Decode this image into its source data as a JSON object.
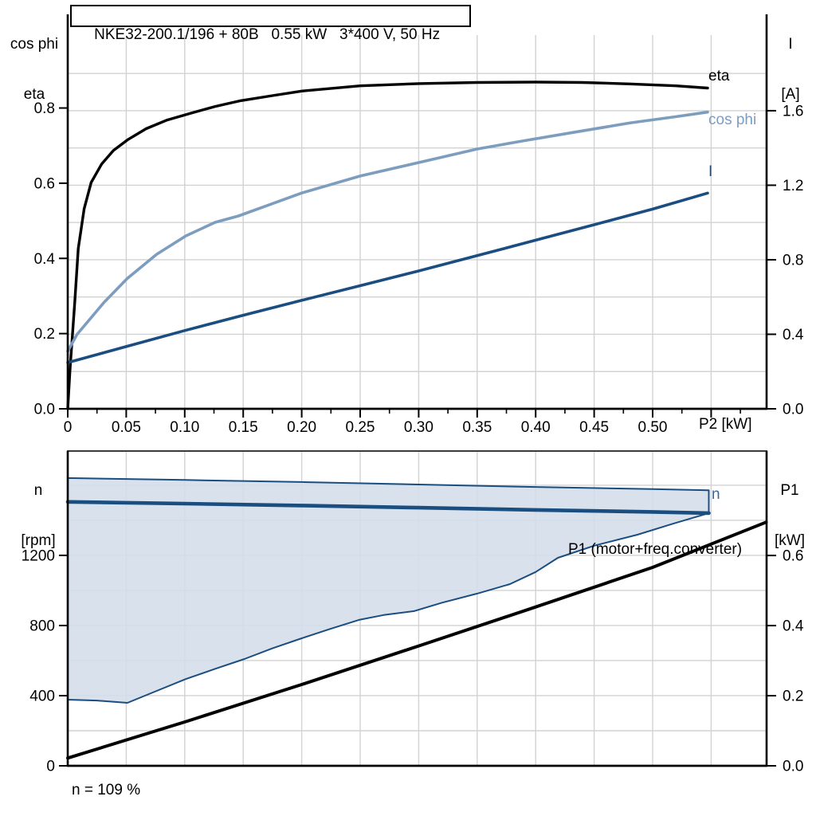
{
  "title": "NKE32-200.1/196 + 80B   0.55 kW   3*400 V, 50 Hz",
  "colors": {
    "eta_curve": "#000000",
    "cos_phi_curve": "#7d9dbf",
    "current_curve": "#1a4d80",
    "speed_curve": "#1a4d80",
    "p1_curve": "#000000",
    "region_fill": "#d3dde9",
    "grid": "#d2d2d2"
  },
  "chart_data": [
    {
      "type": "line",
      "x": {
        "label": "P2 [kW]",
        "min": 0,
        "max": 0.5974,
        "ticks": [
          {
            "v": 0,
            "t": "0"
          },
          {
            "v": 0.05,
            "t": "0.05"
          },
          {
            "v": 0.1,
            "t": "0.10"
          },
          {
            "v": 0.15,
            "t": "0.15"
          },
          {
            "v": 0.2,
            "t": "0.20"
          },
          {
            "v": 0.25,
            "t": "0.25"
          },
          {
            "v": 0.3,
            "t": "0.30"
          },
          {
            "v": 0.35,
            "t": "0.35"
          },
          {
            "v": 0.4,
            "t": "0.40"
          },
          {
            "v": 0.45,
            "t": "0.45"
          },
          {
            "v": 0.5,
            "t": "0.50"
          },
          {
            "v": 0.55,
            "t": ""
          }
        ],
        "minor_tick_step": 0.025
      },
      "y_left": {
        "label_lines": [
          "cos phi",
          "eta"
        ],
        "min": 0,
        "max": 0.994,
        "ticks": [
          {
            "v": 0,
            "t": "0.0"
          },
          {
            "v": 0.2,
            "t": "0.2"
          },
          {
            "v": 0.4,
            "t": "0.4"
          },
          {
            "v": 0.6,
            "t": "0.6"
          },
          {
            "v": 0.8,
            "t": "0.8"
          }
        ]
      },
      "y_right": {
        "label_lines": [
          "I",
          "[A]"
        ],
        "min": 0,
        "max": 2.006,
        "ticks": [
          {
            "v": 0,
            "t": "0.0"
          },
          {
            "v": 0.4,
            "t": "0.4"
          },
          {
            "v": 0.8,
            "t": "0.8"
          },
          {
            "v": 1.2,
            "t": "1.2"
          },
          {
            "v": 1.6,
            "t": "1.6"
          }
        ]
      },
      "grid_h_axis": "right",
      "grid_h": [
        0.2,
        0.4,
        0.6,
        0.8,
        1.0,
        1.2,
        1.4,
        1.6,
        1.8,
        2.0
      ],
      "series": [
        {
          "name": "eta",
          "axis": "left",
          "color": "#000000",
          "width": 3.4,
          "points": [
            [
              0,
              0
            ],
            [
              0.002,
              0.106
            ],
            [
              0.006,
              0.283
            ],
            [
              0.009,
              0.426
            ],
            [
              0.014,
              0.532
            ],
            [
              0.02,
              0.602
            ],
            [
              0.029,
              0.651
            ],
            [
              0.039,
              0.687
            ],
            [
              0.051,
              0.715
            ],
            [
              0.067,
              0.745
            ],
            [
              0.085,
              0.768
            ],
            [
              0.106,
              0.787
            ],
            [
              0.126,
              0.804
            ],
            [
              0.147,
              0.819
            ],
            [
              0.175,
              0.833
            ],
            [
              0.2,
              0.845
            ],
            [
              0.25,
              0.859
            ],
            [
              0.3,
              0.865
            ],
            [
              0.35,
              0.868
            ],
            [
              0.4,
              0.869
            ],
            [
              0.44,
              0.868
            ],
            [
              0.48,
              0.864
            ],
            [
              0.52,
              0.859
            ],
            [
              0.547,
              0.853
            ]
          ]
        },
        {
          "name": "cos phi",
          "axis": "left",
          "color": "#7d9dbf",
          "width": 3.6,
          "points": [
            [
              0,
              0.153
            ],
            [
              0.008,
              0.198
            ],
            [
              0.031,
              0.283
            ],
            [
              0.051,
              0.347
            ],
            [
              0.076,
              0.411
            ],
            [
              0.101,
              0.46
            ],
            [
              0.126,
              0.496
            ],
            [
              0.146,
              0.513
            ],
            [
              0.2,
              0.574
            ],
            [
              0.25,
              0.619
            ],
            [
              0.3,
              0.655
            ],
            [
              0.35,
              0.691
            ],
            [
              0.39,
              0.713
            ],
            [
              0.43,
              0.734
            ],
            [
              0.48,
              0.76
            ],
            [
              0.52,
              0.777
            ],
            [
              0.547,
              0.789
            ]
          ]
        },
        {
          "name": "I",
          "axis": "right",
          "color": "#1a4d80",
          "width": 3.6,
          "points": [
            [
              0,
              0.248
            ],
            [
              0.05,
              0.334
            ],
            [
              0.1,
              0.42
            ],
            [
              0.15,
              0.502
            ],
            [
              0.2,
              0.582
            ],
            [
              0.25,
              0.661
            ],
            [
              0.3,
              0.74
            ],
            [
              0.35,
              0.822
            ],
            [
              0.4,
              0.905
            ],
            [
              0.45,
              0.988
            ],
            [
              0.5,
              1.072
            ],
            [
              0.547,
              1.158
            ]
          ]
        }
      ]
    },
    {
      "type": "line+area",
      "x": {
        "label": "",
        "min": 0,
        "max": 0.5974,
        "ticks": [
          {
            "v": 0.05,
            "t": ""
          },
          {
            "v": 0.1,
            "t": ""
          },
          {
            "v": 0.15,
            "t": ""
          },
          {
            "v": 0.2,
            "t": ""
          },
          {
            "v": 0.25,
            "t": ""
          },
          {
            "v": 0.3,
            "t": ""
          },
          {
            "v": 0.35,
            "t": ""
          },
          {
            "v": 0.4,
            "t": ""
          },
          {
            "v": 0.45,
            "t": ""
          },
          {
            "v": 0.5,
            "t": ""
          },
          {
            "v": 0.55,
            "t": ""
          }
        ]
      },
      "y_left": {
        "label_lines": [
          "n",
          "[rpm]"
        ],
        "min": 0,
        "max": 1795,
        "ticks": [
          {
            "v": 0,
            "t": "0"
          },
          {
            "v": 400,
            "t": "400"
          },
          {
            "v": 800,
            "t": "800"
          },
          {
            "v": 1200,
            "t": "1200"
          }
        ]
      },
      "y_right": {
        "label_lines": [
          "P1",
          "[kW]"
        ],
        "min": 0,
        "max": 0.898,
        "ticks": [
          {
            "v": 0,
            "t": "0.0"
          },
          {
            "v": 0.2,
            "t": "0.2"
          },
          {
            "v": 0.4,
            "t": "0.4"
          },
          {
            "v": 0.6,
            "t": "0.6"
          }
        ]
      },
      "grid_h_axis": "left",
      "grid_h": [
        200,
        400,
        600,
        800,
        1000,
        1200,
        1400,
        1600,
        1800
      ],
      "region": {
        "name": "speed-control-range",
        "fill": "#d3dde9",
        "border_color": "#1a4d80",
        "upper": [
          [
            0,
            1641
          ],
          [
            0.1,
            1630
          ],
          [
            0.2,
            1618
          ],
          [
            0.3,
            1604
          ],
          [
            0.4,
            1590
          ],
          [
            0.5,
            1578
          ],
          [
            0.548,
            1571
          ]
        ],
        "lower": [
          [
            0,
            377
          ],
          [
            0.025,
            372
          ],
          [
            0.051,
            359
          ],
          [
            0.076,
            427
          ],
          [
            0.101,
            495
          ],
          [
            0.126,
            553
          ],
          [
            0.151,
            609
          ],
          [
            0.175,
            670
          ],
          [
            0.2,
            727
          ],
          [
            0.225,
            782
          ],
          [
            0.249,
            832
          ],
          [
            0.27,
            860
          ],
          [
            0.296,
            882
          ],
          [
            0.32,
            930
          ],
          [
            0.35,
            982
          ],
          [
            0.378,
            1036
          ],
          [
            0.4,
            1105
          ],
          [
            0.419,
            1186
          ],
          [
            0.45,
            1255
          ],
          [
            0.487,
            1318
          ],
          [
            0.518,
            1382
          ],
          [
            0.548,
            1441
          ]
        ]
      },
      "series": [
        {
          "name": "n",
          "axis": "left",
          "color": "#1a4d80",
          "width": 4.6,
          "points": [
            [
              0,
              1505
            ],
            [
              0.1,
              1495
            ],
            [
              0.2,
              1484
            ],
            [
              0.3,
              1472
            ],
            [
              0.4,
              1459
            ],
            [
              0.5,
              1448
            ],
            [
              0.548,
              1441
            ]
          ]
        },
        {
          "name": "P1 (motor+freq.converter)",
          "axis": "right",
          "color": "#000000",
          "width": 4.0,
          "points": [
            [
              0,
              0.022
            ],
            [
              0.1,
              0.125
            ],
            [
              0.2,
              0.232
            ],
            [
              0.3,
              0.342
            ],
            [
              0.4,
              0.453
            ],
            [
              0.5,
              0.566
            ],
            [
              0.597,
              0.695
            ]
          ]
        }
      ],
      "footnote": "n = 109 %"
    }
  ]
}
